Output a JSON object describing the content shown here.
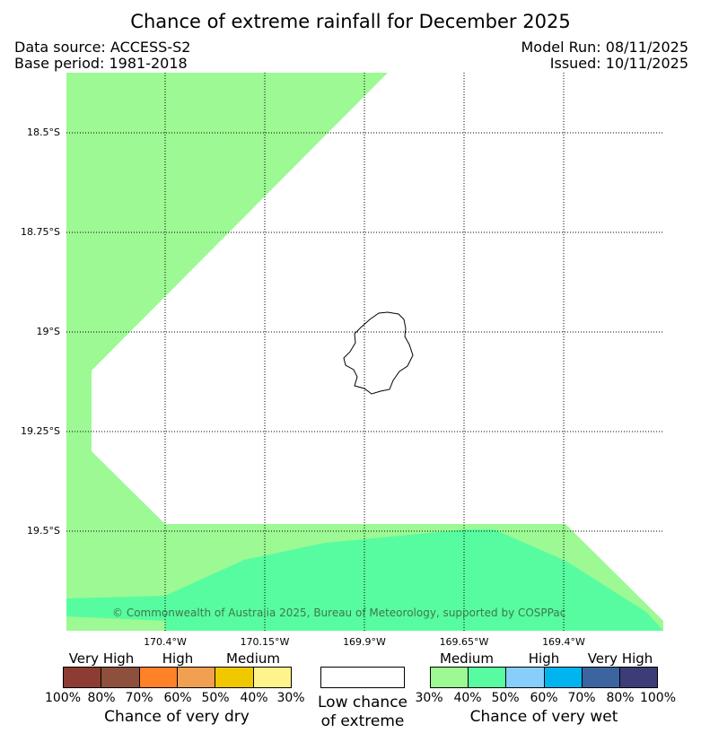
{
  "title": "Chance of extreme rainfall for December 2025",
  "header": {
    "data_source": "Data source: ACCESS-S2",
    "base_period": "Base period: 1981-2018",
    "model_run": "Model Run: 08/11/2025",
    "issued": "Issued: 10/11/2025"
  },
  "map": {
    "lat_labels": [
      "18.5°S",
      "18.75°S",
      "19°S",
      "19.25°S",
      "19.5°S"
    ],
    "lon_labels": [
      "170.4°W",
      "170.15°W",
      "169.9°W",
      "169.65°W",
      "169.4°W"
    ],
    "copyright": "© Commonwealth of Australia 2025, Bureau of Meteorology, supported by COSPPac",
    "colors": {
      "medium_wet": "#9cf993",
      "high_wet_40_50": "#58fca0",
      "background": "#ffffff",
      "island": "#000000"
    }
  },
  "legend": {
    "dry": {
      "categories": [
        "Very High",
        "High",
        "Medium"
      ],
      "percent_labels": [
        "100%",
        "80%",
        "70%",
        "60%",
        "50%",
        "40%",
        "30%"
      ],
      "colors": [
        "#8c3c32",
        "#8c503c",
        "#ff8228",
        "#f0a050",
        "#f0c800",
        "#fff48c"
      ],
      "caption": "Chance of very dry"
    },
    "low": {
      "caption_line1": "Low chance",
      "caption_line2": "of extreme"
    },
    "wet": {
      "categories": [
        "Medium",
        "High",
        "Very High"
      ],
      "percent_labels": [
        "30%",
        "40%",
        "50%",
        "60%",
        "70%",
        "80%",
        "100%"
      ],
      "colors": [
        "#9cf993",
        "#58fca0",
        "#87cefa",
        "#00b4f0",
        "#3c64a0",
        "#3c3c78"
      ],
      "caption": "Chance of very wet"
    }
  }
}
